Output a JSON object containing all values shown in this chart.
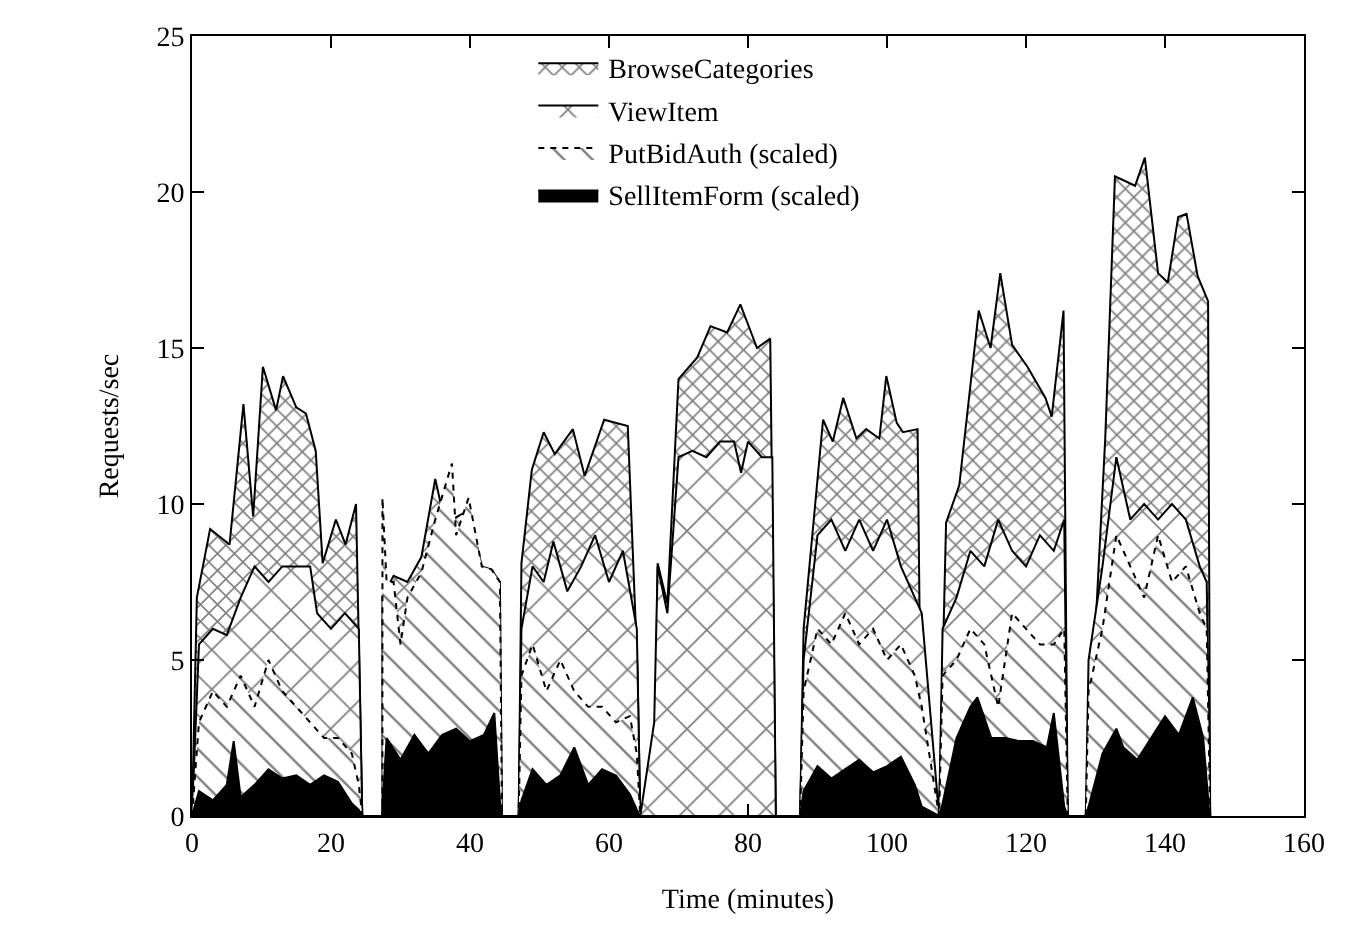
{
  "chart_data": {
    "type": "area",
    "xlabel": "Time (minutes)",
    "ylabel": "Requests/sec",
    "xlim": [
      0,
      160
    ],
    "xticks": [
      0,
      20,
      40,
      60,
      80,
      100,
      120,
      140,
      160
    ],
    "ylim": [
      0,
      25
    ],
    "yticks": [
      0,
      5,
      10,
      15,
      20,
      25
    ],
    "legend": "top right",
    "marker": "none",
    "series": [
      {
        "name": "BrowseCategories",
        "color": "#000000",
        "line_style": "solid",
        "x": [
          0,
          0.7,
          2.6,
          5.4,
          7.4,
          8.8,
          10.2,
          12.1,
          13.1,
          15.0,
          16.4,
          17.8,
          18.8,
          20.7,
          22.1,
          23.6,
          24.5,
          27.4,
          27.4,
          29,
          31,
          33,
          35,
          36,
          37.4,
          39.8,
          41.7,
          43.1,
          44.3,
          44.6,
          47,
          47.4,
          48.9,
          50.6,
          52.2,
          54.8,
          56.5,
          59.3,
          62.7,
          64.1,
          64.5,
          66.5,
          67,
          68.4,
          70,
          72.7,
          74.6,
          77,
          78.9,
          81.3,
          83.2,
          84,
          87.5,
          88,
          90.8,
          92.2,
          93.7,
          95.6,
          97,
          98.9,
          99.9,
          101.4,
          102.3,
          104.4,
          105,
          107.5,
          108.5,
          110.4,
          113.2,
          114.9,
          116.3,
          118,
          120.2,
          122.8,
          123.7,
          125.4,
          126,
          128.6,
          131.4,
          132.8,
          135.7,
          137.1,
          139,
          140.4,
          141.9,
          143.1,
          144.7,
          146.2,
          146.5
        ],
        "values": [
          0,
          7.0,
          9.2,
          8.7,
          13.2,
          9.6,
          14.4,
          13.0,
          14.1,
          13.1,
          12.9,
          11.7,
          8.1,
          9.5,
          8.7,
          10.0,
          0,
          0,
          7.0,
          7.7,
          7.5,
          8.3,
          10.8,
          9.8,
          9.5,
          9.8,
          8.0,
          7.9,
          7.5,
          0,
          0,
          8.1,
          11.1,
          12.3,
          11.6,
          12.4,
          10.9,
          12.7,
          12.5,
          4.7,
          0,
          0,
          8.1,
          6.8,
          14.0,
          14.7,
          15.7,
          15.5,
          16.4,
          15.0,
          15.3,
          0,
          0,
          6.0,
          12.7,
          12.0,
          13.4,
          12.1,
          12.4,
          12.1,
          14.1,
          12.6,
          12.3,
          12.4,
          0,
          0,
          9.4,
          10.6,
          16.2,
          15.0,
          17.4,
          15.1,
          14.4,
          13.4,
          12.8,
          16.2,
          0,
          0,
          12.1,
          20.5,
          20.2,
          21.1,
          17.4,
          17.1,
          19.2,
          19.3,
          17.3,
          16.5,
          0
        ]
      },
      {
        "name": "ViewItem",
        "color": "#000000",
        "line_style": "solid",
        "x": [
          0,
          1,
          3,
          5,
          7,
          9,
          11,
          13,
          15,
          17,
          18,
          20,
          22,
          24,
          24.5,
          47,
          47.4,
          49,
          50.6,
          52,
          54,
          56,
          58,
          60,
          62,
          64,
          64.5,
          66.5,
          67,
          68.4,
          70,
          72,
          74,
          76,
          78,
          79,
          80,
          82,
          83.5,
          84,
          87.5,
          88,
          90,
          92,
          94,
          96,
          98,
          100,
          102,
          104,
          105,
          107.5,
          108,
          110,
          112,
          114,
          116,
          118,
          120,
          122,
          124,
          125.5,
          126,
          128.6,
          129,
          131,
          133,
          135,
          137,
          139,
          141,
          143,
          145,
          146,
          146.5
        ],
        "values": [
          0,
          5.5,
          6.0,
          5.8,
          7.0,
          8.0,
          7.5,
          8.0,
          8.0,
          8.0,
          6.5,
          6.0,
          6.5,
          6.0,
          0,
          0,
          6.0,
          8.0,
          7.5,
          8.8,
          7.2,
          8.0,
          9.0,
          7.5,
          8.5,
          6.0,
          0,
          3.0,
          8.0,
          6.5,
          11.5,
          11.7,
          11.5,
          12.0,
          12.0,
          11.0,
          12.0,
          11.5,
          11.5,
          0,
          0,
          5.0,
          9.0,
          9.5,
          8.5,
          9.5,
          8.5,
          9.5,
          8.0,
          7.0,
          6.5,
          0,
          6.0,
          7.0,
          8.5,
          8.0,
          9.5,
          8.5,
          8.0,
          9.0,
          8.5,
          9.5,
          0,
          0,
          5.0,
          8.0,
          11.5,
          9.5,
          10.0,
          9.5,
          10.0,
          9.5,
          8.0,
          7.5,
          0
        ]
      },
      {
        "name": "PutBidAuth (scaled)",
        "color": "#000000",
        "line_style": "dotted",
        "x": [
          0,
          1,
          3,
          5,
          7,
          9,
          11,
          13,
          15,
          17,
          19,
          21,
          23,
          24,
          24.5,
          27.4,
          27.4,
          28,
          29,
          30,
          31,
          33,
          35,
          37.4,
          38,
          39.8,
          41.7,
          43.1,
          44.3,
          44.6,
          47,
          47.4,
          49,
          51,
          53,
          55,
          57,
          59,
          61,
          63,
          64,
          64.5,
          87.5,
          88,
          90,
          92,
          94,
          96,
          98,
          100,
          102,
          104,
          105,
          107.5,
          108,
          110,
          112,
          114,
          116,
          118,
          120,
          122,
          124,
          125.5,
          126,
          128.6,
          129,
          131,
          133,
          135,
          137,
          139,
          141,
          143,
          145,
          146,
          146.5
        ],
        "values": [
          0,
          3.0,
          4.0,
          3.5,
          4.5,
          3.5,
          5.0,
          4.0,
          3.5,
          3.0,
          2.5,
          2.5,
          2.0,
          1.0,
          0,
          0,
          10.2,
          7.5,
          7.5,
          5.5,
          7.0,
          7.8,
          9.5,
          11.3,
          9.0,
          10.2,
          8.0,
          7.9,
          7.5,
          0,
          0,
          4.5,
          5.5,
          4.0,
          5.0,
          4.0,
          3.5,
          3.5,
          3.0,
          3.2,
          2.0,
          0,
          0,
          4.0,
          6.0,
          5.5,
          6.5,
          5.5,
          6.0,
          5.0,
          5.5,
          4.5,
          3.5,
          0,
          4.5,
          5.0,
          6.0,
          5.5,
          3.5,
          6.5,
          6.0,
          5.5,
          5.5,
          6.0,
          0,
          0,
          4.0,
          6.0,
          9.0,
          8.0,
          7.0,
          9.0,
          7.5,
          8.0,
          6.5,
          6.0,
          0
        ]
      },
      {
        "name": "SellItemForm (scaled)",
        "color": "#000000",
        "line_style": "solid",
        "x": [
          0,
          1,
          3,
          5,
          6,
          7,
          9,
          11,
          13,
          15,
          17,
          19,
          21,
          23,
          24,
          24.5,
          27.4,
          27.4,
          28,
          30,
          32,
          34,
          36,
          38,
          40,
          42,
          43.5,
          44.3,
          44.6,
          47,
          47.4,
          49,
          51,
          53,
          55,
          57,
          59,
          61,
          63,
          64,
          64.5,
          87.5,
          88,
          90,
          92,
          94,
          96,
          98,
          100,
          102,
          104,
          105,
          107.5,
          108,
          110,
          112,
          113,
          115,
          117,
          119,
          121,
          123,
          124,
          125.5,
          126,
          128.6,
          129,
          131,
          133,
          134,
          136,
          138,
          140,
          142,
          144,
          145.5,
          146.3,
          146.5
        ],
        "values": [
          0,
          0.8,
          0.5,
          1.0,
          2.4,
          0.6,
          1.0,
          1.5,
          1.2,
          1.3,
          1.0,
          1.3,
          1.1,
          0.4,
          0.2,
          0,
          0,
          0.3,
          2.5,
          1.8,
          2.6,
          2.0,
          2.6,
          2.8,
          2.4,
          2.6,
          3.3,
          0.5,
          0,
          0,
          0.5,
          1.5,
          1.0,
          1.3,
          2.2,
          1.0,
          1.5,
          1.3,
          0.7,
          0.2,
          0,
          0,
          0.8,
          1.6,
          1.2,
          1.5,
          1.8,
          1.4,
          1.6,
          1.9,
          1.0,
          0.3,
          0,
          0.4,
          2.5,
          3.5,
          3.8,
          2.5,
          2.5,
          2.4,
          2.4,
          2.2,
          3.3,
          0.3,
          0,
          0,
          0.3,
          2.0,
          2.8,
          2.2,
          1.8,
          2.5,
          3.2,
          2.6,
          3.8,
          2.5,
          0.3,
          0
        ]
      }
    ]
  }
}
